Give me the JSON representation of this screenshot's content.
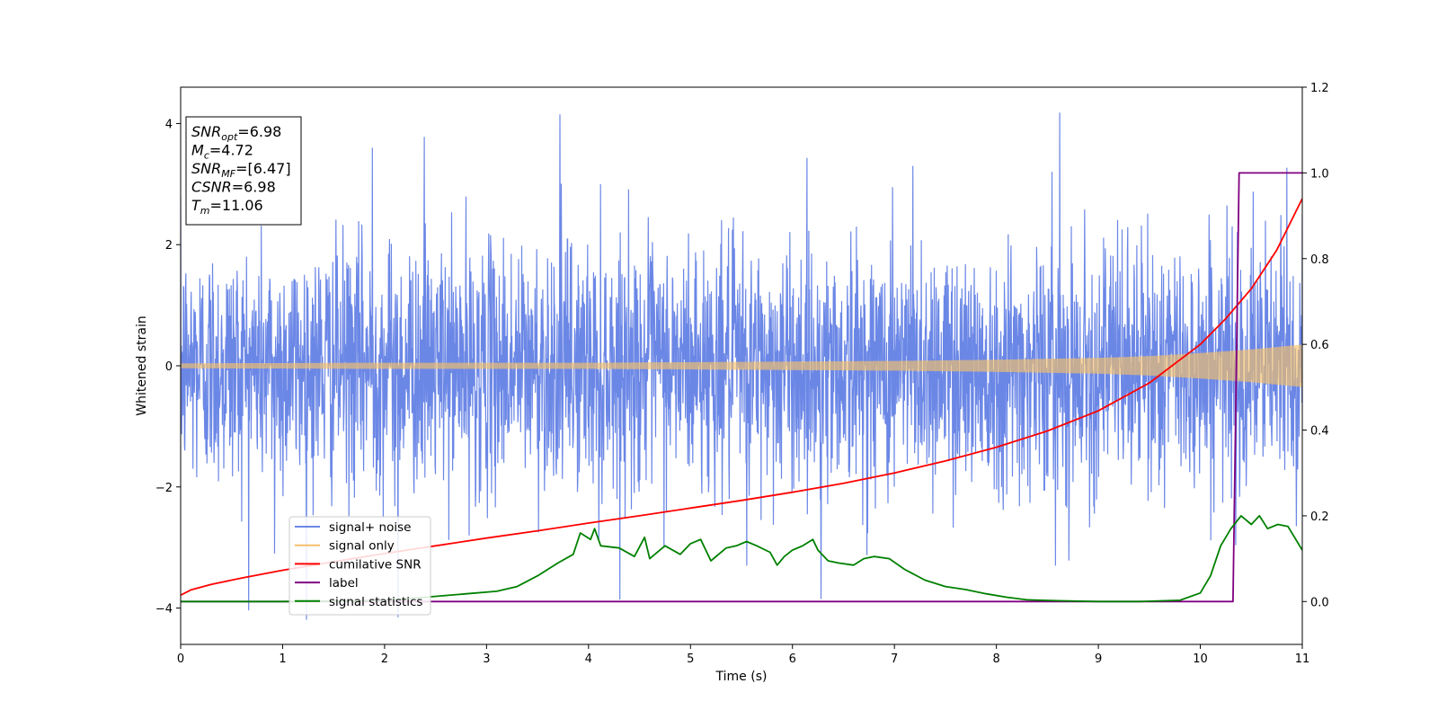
{
  "chart_data": {
    "type": "line",
    "xlabel": "Time (s)",
    "ylabel": "Whitened strain",
    "xlim": [
      0,
      11
    ],
    "ylim": [
      -4.6,
      4.6
    ],
    "y2lim": [
      -0.1,
      1.2
    ],
    "x_ticks": [
      "0",
      "1",
      "2",
      "3",
      "4",
      "5",
      "6",
      "7",
      "8",
      "9",
      "10",
      "11"
    ],
    "y_ticks": [
      "−4",
      "−2",
      "0",
      "2",
      "4"
    ],
    "y2_ticks": [
      "0.0",
      "0.2",
      "0.4",
      "0.6",
      "0.8",
      "1.0",
      "1.2"
    ],
    "info_box": {
      "lines": [
        {
          "sym": "SNR",
          "sub": "opt",
          "value": "=6.98"
        },
        {
          "sym": "M",
          "sub": "c",
          "value": "=4.72"
        },
        {
          "sym": "SNR",
          "sub": "MF",
          "value": "=[6.47]"
        },
        {
          "sym": "CSNR",
          "sub": "",
          "value": "=6.98"
        },
        {
          "sym": "T",
          "sub": "m",
          "value": "=11.06"
        }
      ]
    },
    "legend": {
      "placement": "lower-left",
      "entries": [
        {
          "label": "signal+ noise",
          "color": "#6b87e6"
        },
        {
          "label": "signal only",
          "color": "#f5c06a"
        },
        {
          "label": "cumilative SNR",
          "color": "#ff0000"
        },
        {
          "label": "label",
          "color": "#800080"
        },
        {
          "label": "signal statistics",
          "color": "#008000"
        }
      ]
    },
    "series": [
      {
        "name": "signal+ noise",
        "axis": "left",
        "color": "#6b87e6",
        "kind": "noise",
        "std": 1.0,
        "spikes": [
          [
            0.92,
            -3.1
          ],
          [
            1.88,
            3.6
          ],
          [
            2.13,
            -4.15
          ],
          [
            2.39,
            3.78
          ],
          [
            2.83,
            -2.8
          ],
          [
            3.72,
            4.15
          ],
          [
            4.1,
            -2.9
          ],
          [
            5.55,
            -3.3
          ],
          [
            6.28,
            -3.85
          ],
          [
            6.98,
            2.95
          ],
          [
            7.18,
            3.3
          ],
          [
            8.58,
            -3.3
          ],
          [
            8.62,
            4.18
          ],
          [
            10.85,
            3.27
          ],
          [
            11.0,
            2.5
          ]
        ]
      },
      {
        "name": "signal only",
        "axis": "left",
        "color": "#f5c06a",
        "kind": "chirp",
        "amplitude": [
          [
            0,
            0.04
          ],
          [
            2,
            0.05
          ],
          [
            4,
            0.05
          ],
          [
            6,
            0.07
          ],
          [
            7,
            0.08
          ],
          [
            8,
            0.1
          ],
          [
            9,
            0.13
          ],
          [
            9.5,
            0.16
          ],
          [
            10,
            0.21
          ],
          [
            10.5,
            0.27
          ],
          [
            11,
            0.35
          ]
        ]
      },
      {
        "name": "cumilative SNR",
        "axis": "right",
        "color": "#ff0000",
        "x": [
          0,
          0.1,
          0.3,
          0.6,
          1.0,
          1.5,
          2.0,
          2.5,
          3.0,
          3.5,
          4.0,
          4.5,
          5.0,
          5.5,
          6.0,
          6.5,
          7.0,
          7.5,
          8.0,
          8.5,
          9.0,
          9.5,
          10.0,
          10.25,
          10.5,
          10.75,
          11.0
        ],
        "y": [
          0.015,
          0.027,
          0.04,
          0.055,
          0.073,
          0.093,
          0.112,
          0.13,
          0.148,
          0.165,
          0.183,
          0.2,
          0.218,
          0.236,
          0.255,
          0.276,
          0.3,
          0.328,
          0.36,
          0.398,
          0.445,
          0.51,
          0.6,
          0.66,
          0.73,
          0.82,
          0.94
        ]
      },
      {
        "name": "label",
        "axis": "right",
        "color": "#800080",
        "x": [
          0,
          10.32,
          10.38,
          11.0
        ],
        "y": [
          0.0,
          0.0,
          1.0,
          1.0
        ]
      },
      {
        "name": "signal statistics",
        "axis": "right",
        "color": "#008000",
        "x": [
          0,
          1.0,
          2.0,
          2.4,
          2.8,
          3.1,
          3.3,
          3.5,
          3.7,
          3.85,
          3.92,
          4.02,
          4.06,
          4.12,
          4.3,
          4.45,
          4.55,
          4.6,
          4.75,
          4.9,
          5.0,
          5.1,
          5.2,
          5.35,
          5.45,
          5.55,
          5.65,
          5.78,
          5.85,
          5.92,
          6.0,
          6.1,
          6.2,
          6.25,
          6.35,
          6.45,
          6.6,
          6.7,
          6.8,
          6.95,
          7.1,
          7.3,
          7.5,
          7.7,
          7.9,
          8.1,
          8.3,
          8.6,
          9.0,
          9.4,
          9.8,
          10.0,
          10.1,
          10.2,
          10.3,
          10.4,
          10.5,
          10.58,
          10.66,
          10.76,
          10.86,
          11.0
        ],
        "y": [
          0.0,
          0.0,
          0.003,
          0.01,
          0.018,
          0.024,
          0.035,
          0.06,
          0.09,
          0.11,
          0.16,
          0.145,
          0.17,
          0.13,
          0.125,
          0.105,
          0.15,
          0.1,
          0.13,
          0.11,
          0.135,
          0.145,
          0.095,
          0.125,
          0.13,
          0.14,
          0.13,
          0.115,
          0.085,
          0.105,
          0.12,
          0.13,
          0.145,
          0.12,
          0.095,
          0.09,
          0.085,
          0.1,
          0.105,
          0.1,
          0.075,
          0.05,
          0.035,
          0.028,
          0.018,
          0.01,
          0.004,
          0.002,
          0.0,
          0.0,
          0.003,
          0.02,
          0.06,
          0.13,
          0.17,
          0.2,
          0.18,
          0.2,
          0.17,
          0.18,
          0.175,
          0.12
        ]
      }
    ]
  }
}
